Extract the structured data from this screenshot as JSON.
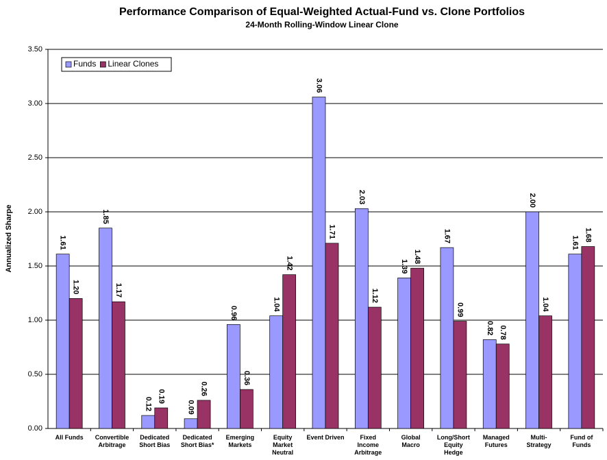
{
  "chart_data": {
    "type": "bar",
    "title": "Performance Comparison of Equal-Weighted Actual-Fund vs. Clone Portfolios",
    "subtitle": "24-Month Rolling-Window Linear Clone",
    "y_label": "Annualized Sharpe",
    "categories": [
      [
        "All Funds"
      ],
      [
        "Convertible",
        "Arbitrage"
      ],
      [
        "Dedicated",
        "Short Bias"
      ],
      [
        "Dedicated",
        "Short Bias*"
      ],
      [
        "Emerging",
        "Markets"
      ],
      [
        "Equity",
        "Market",
        "Neutral"
      ],
      [
        "Event Driven"
      ],
      [
        "Fixed",
        "Income",
        "Arbitrage"
      ],
      [
        "Global",
        "Macro"
      ],
      [
        "Long/Short",
        "Equity",
        "Hedge"
      ],
      [
        "Managed",
        "Futures"
      ],
      [
        "Multi-",
        "Strategy"
      ],
      [
        "Fund of",
        "Funds"
      ]
    ],
    "series": [
      {
        "name": "Funds",
        "color": "#9999ff",
        "values": [
          1.61,
          1.85,
          0.12,
          0.09,
          0.96,
          1.04,
          3.06,
          2.03,
          1.39,
          1.67,
          0.82,
          2.0,
          1.61
        ],
        "value_labels": [
          "1.61",
          "1.85",
          "0.12",
          "0.09",
          "0.96",
          "1.04",
          "3.06",
          "2.03",
          "1.39",
          "1.67",
          "0.82",
          "2.00",
          "1.61"
        ]
      },
      {
        "name": "Linear Clones",
        "color": "#993366",
        "values": [
          1.2,
          1.17,
          0.19,
          0.26,
          0.36,
          1.42,
          1.71,
          1.12,
          1.48,
          0.99,
          0.78,
          1.04,
          1.68
        ],
        "value_labels": [
          "1.20",
          "1.17",
          "0.19",
          "0.26",
          "0.36",
          "1.42",
          "1.71",
          "1.12",
          "1.48",
          "0.99",
          "0.78",
          "1.04",
          "1.68"
        ]
      }
    ],
    "ylim": [
      0,
      3.5
    ],
    "yticks": [
      {
        "value": 0,
        "label": "0.00"
      },
      {
        "value": 0.5,
        "label": "0.50"
      },
      {
        "value": 1,
        "label": "1.00"
      },
      {
        "value": 1.5,
        "label": "1.50"
      },
      {
        "value": 2,
        "label": "2.00"
      },
      {
        "value": 2.5,
        "label": "2.50"
      },
      {
        "value": 3,
        "label": "3.00"
      },
      {
        "value": 3.5,
        "label": "3.50"
      }
    ],
    "grid": true,
    "legend": "upper left"
  }
}
